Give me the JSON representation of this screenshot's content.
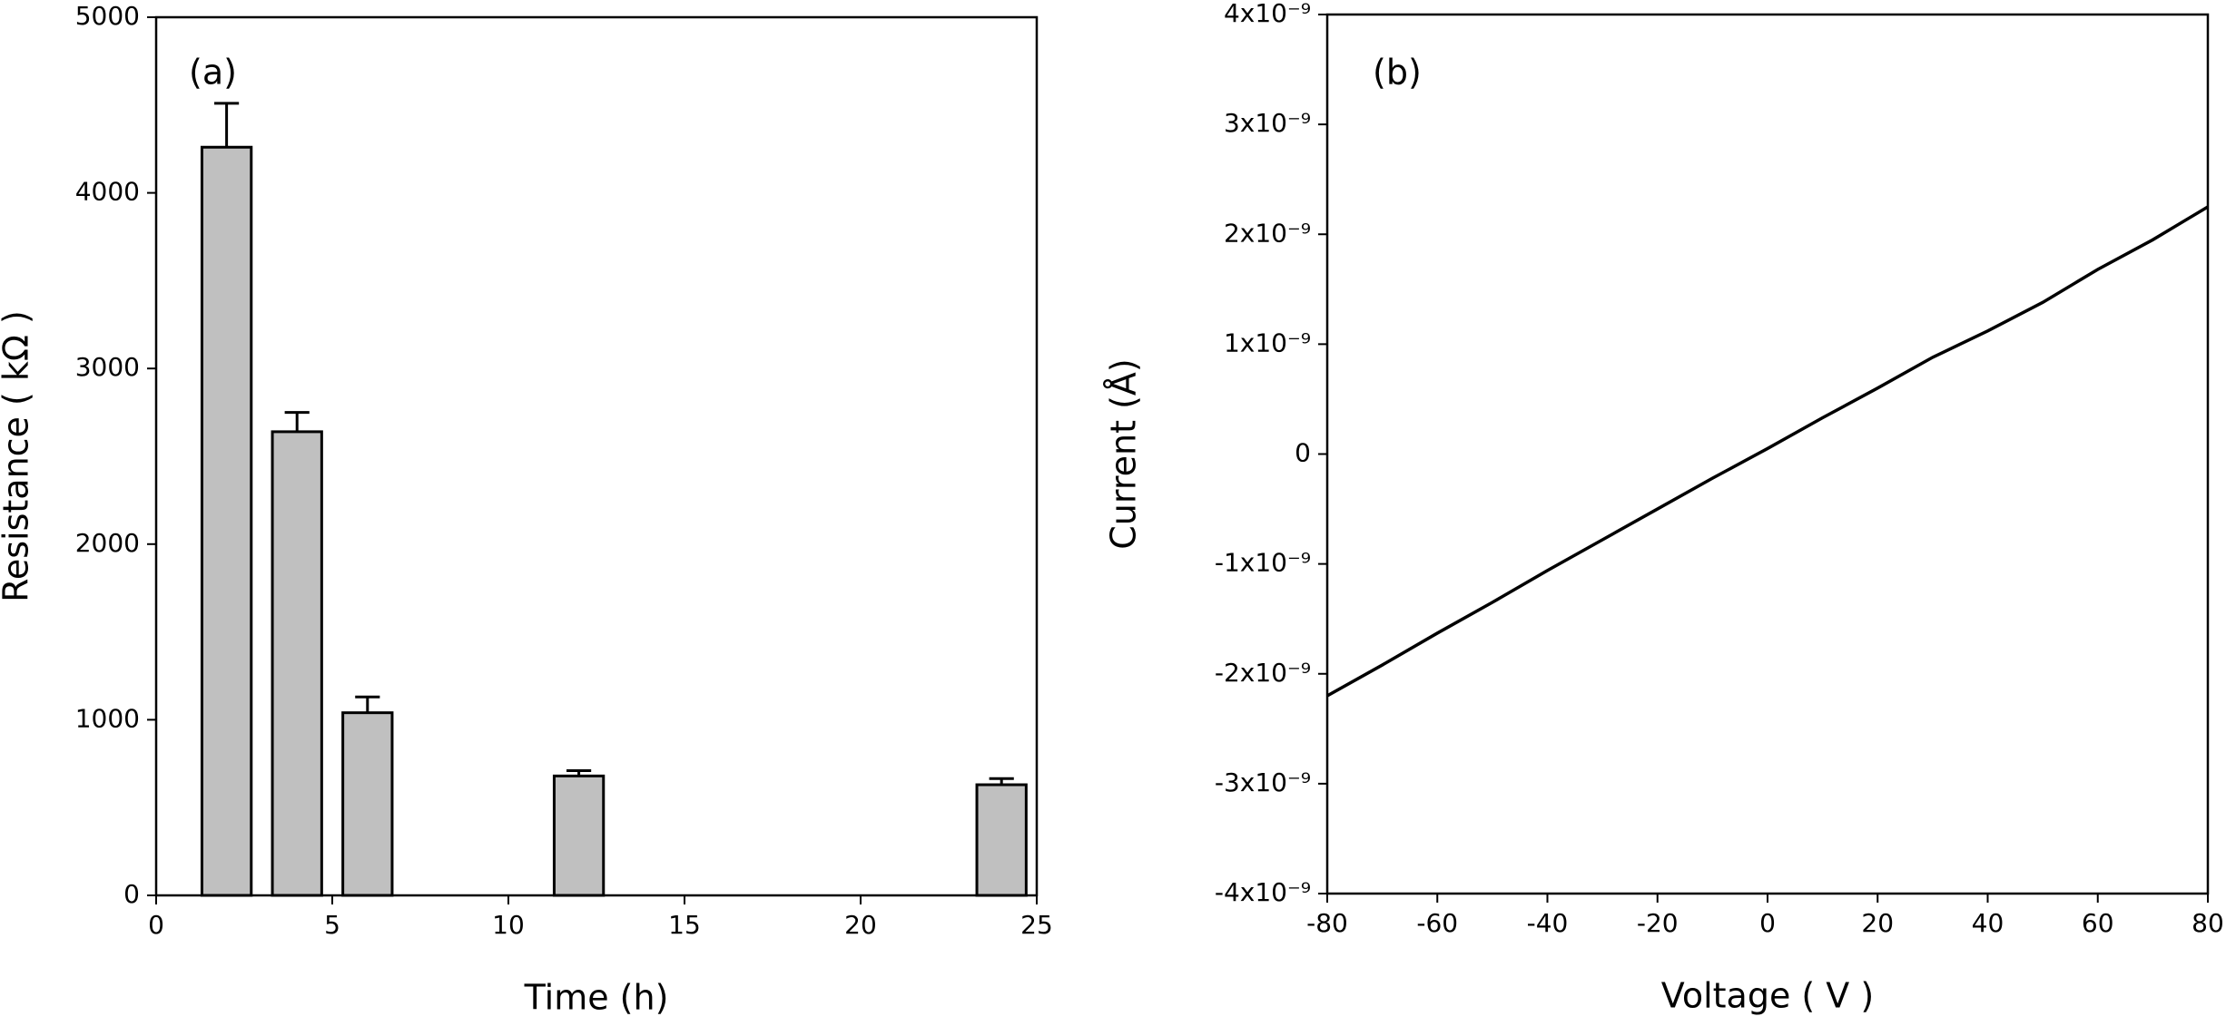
{
  "chart_data": [
    {
      "type": "bar",
      "label": "(a)",
      "x_label": "Time (h)",
      "y_label": "Resistance ( kΩ )",
      "x": [
        2,
        4,
        6,
        12,
        24
      ],
      "values": [
        4260,
        2640,
        1040,
        680,
        630
      ],
      "errors": [
        250,
        110,
        90,
        30,
        35
      ],
      "color": "#c0c0c0",
      "xlim": [
        0,
        25
      ],
      "xticks": [
        0,
        5,
        10,
        15,
        20,
        25
      ],
      "ylim": [
        0,
        5000
      ],
      "yticks": [
        0,
        1000,
        2000,
        3000,
        4000,
        5000
      ]
    },
    {
      "type": "line",
      "label": "(b)",
      "x_label": "Voltage ( V )",
      "y_label": "Current (Å)",
      "x": [
        -80,
        -70,
        -60,
        -50,
        -40,
        -30,
        -20,
        -10,
        0,
        10,
        20,
        30,
        40,
        50,
        60,
        70,
        80
      ],
      "values": [
        -2.2e-09,
        -1.92e-09,
        -1.63e-09,
        -1.35e-09,
        -1.06e-09,
        -7.8e-10,
        -5e-10,
        -2.2e-10,
        5e-11,
        3.3e-10,
        6e-10,
        8.8e-10,
        1.12e-09,
        1.38e-09,
        1.68e-09,
        1.95e-09,
        2.25e-09
      ],
      "color": "#000000",
      "xlim": [
        -80,
        80
      ],
      "xticks": [
        -80,
        -60,
        -40,
        -20,
        0,
        20,
        40,
        60,
        80
      ],
      "ylim": [
        -4e-09,
        4e-09
      ],
      "yticks": [
        {
          "value": -4e-09,
          "label": "-4x10⁻⁹"
        },
        {
          "value": -3e-09,
          "label": "-3x10⁻⁹"
        },
        {
          "value": -2e-09,
          "label": "-2x10⁻⁹"
        },
        {
          "value": -1e-09,
          "label": "-1x10⁻⁹"
        },
        0,
        {
          "value": 1e-09,
          "label": "1x10⁻⁹"
        },
        {
          "value": 2e-09,
          "label": "2x10⁻⁹"
        },
        {
          "value": 3e-09,
          "label": "3x10⁻⁹"
        },
        {
          "value": 4e-09,
          "label": "4x10⁻⁹"
        }
      ]
    }
  ]
}
